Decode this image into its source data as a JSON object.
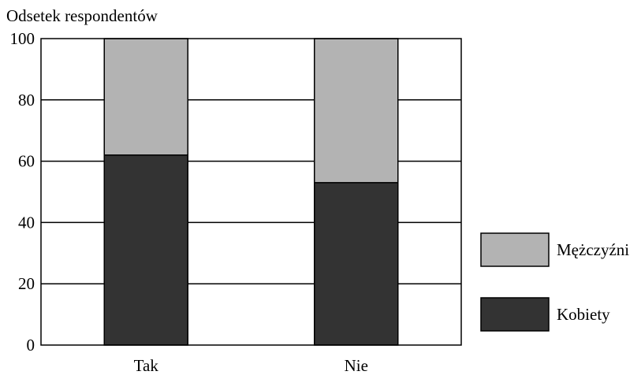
{
  "chart_data": {
    "type": "bar",
    "stacked": true,
    "title": "",
    "xlabel": "",
    "ylabel": "Odsetek respondentów",
    "ylim": [
      0,
      100
    ],
    "yticks": [
      "0",
      "20",
      "40",
      "60",
      "80",
      "100"
    ],
    "grid": true,
    "legend_position": "right",
    "categories": [
      "Tak",
      "Nie"
    ],
    "series": [
      {
        "name": "Kobiety",
        "values": [
          62,
          53
        ],
        "color": "#333333"
      },
      {
        "name": "Mężczyźni",
        "values": [
          38,
          47
        ],
        "color": "#b3b3b3"
      }
    ],
    "legend": [
      {
        "label": "Mężczyźni",
        "color": "#b3b3b3"
      },
      {
        "label": "Kobiety",
        "color": "#333333"
      }
    ]
  }
}
